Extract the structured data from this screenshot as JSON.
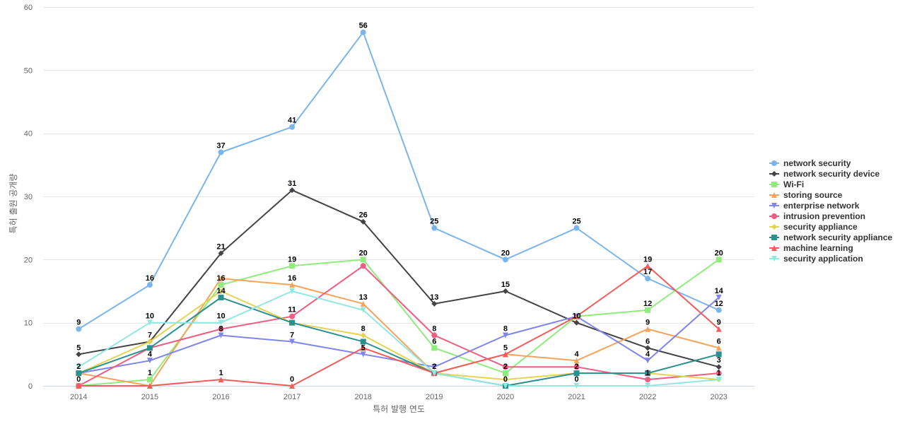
{
  "chart_data": {
    "type": "line",
    "title": "",
    "xlabel": "특허 발행 연도",
    "ylabel": "특허 출원 공개량",
    "categories": [
      "2014",
      "2015",
      "2016",
      "2017",
      "2018",
      "2019",
      "2020",
      "2021",
      "2022",
      "2023"
    ],
    "ylim": [
      0,
      60
    ],
    "yticks": [
      0,
      10,
      20,
      30,
      40,
      50,
      60
    ],
    "grid": true,
    "legend_position": "right",
    "series": [
      {
        "name": "network security",
        "color": "#7cb5ec",
        "marker": "circle",
        "values": [
          9,
          16,
          37,
          41,
          56,
          25,
          20,
          25,
          17,
          12
        ]
      },
      {
        "name": "network security device",
        "color": "#434348",
        "marker": "diamond",
        "values": [
          5,
          7,
          21,
          31,
          26,
          13,
          15,
          10,
          6,
          3
        ]
      },
      {
        "name": "Wi-Fi",
        "color": "#90ed7d",
        "marker": "square",
        "values": [
          0,
          1,
          16,
          19,
          20,
          6,
          2,
          11,
          12,
          20
        ]
      },
      {
        "name": "storing source",
        "color": "#f7a35c",
        "marker": "triangle",
        "values": [
          2,
          0,
          17,
          16,
          13,
          2,
          5,
          4,
          9,
          6
        ]
      },
      {
        "name": "enterprise network",
        "color": "#8085e9",
        "marker": "triangle-down",
        "values": [
          2,
          4,
          8,
          7,
          5,
          3,
          8,
          11,
          4,
          14
        ]
      },
      {
        "name": "intrusion prevention",
        "color": "#f15c80",
        "marker": "circle",
        "values": [
          0,
          6,
          9,
          11,
          19,
          8,
          3,
          3,
          1,
          2
        ]
      },
      {
        "name": "security appliance",
        "color": "#e4d354",
        "marker": "diamond",
        "values": [
          2,
          7,
          15,
          10,
          8,
          2,
          1,
          2,
          2,
          1
        ]
      },
      {
        "name": "network security appliance",
        "color": "#2b908f",
        "marker": "square",
        "values": [
          2,
          6,
          14,
          10,
          7,
          2,
          0,
          2,
          2,
          5
        ]
      },
      {
        "name": "machine learning",
        "color": "#f45b5b",
        "marker": "triangle",
        "values": [
          0,
          0,
          1,
          0,
          6,
          2,
          5,
          11,
          19,
          9
        ]
      },
      {
        "name": "security application",
        "color": "#91e8e1",
        "marker": "triangle-down",
        "values": [
          3,
          10,
          10,
          15,
          12,
          2,
          0,
          0,
          0,
          1
        ]
      }
    ],
    "data_labels": [
      {
        "x": "2014",
        "text": "9"
      },
      {
        "x": "2014",
        "text": "5"
      },
      {
        "x": "2014",
        "text": "2"
      },
      {
        "x": "2014",
        "text": "0"
      },
      {
        "x": "2015",
        "text": "16"
      },
      {
        "x": "2015",
        "text": "10"
      },
      {
        "x": "2015",
        "text": "7"
      },
      {
        "x": "2015",
        "text": "4"
      },
      {
        "x": "2015",
        "text": "1"
      },
      {
        "x": "2016",
        "text": "37"
      },
      {
        "x": "2016",
        "text": "21"
      },
      {
        "x": "2016",
        "text": "16"
      },
      {
        "x": "2016",
        "text": "14"
      },
      {
        "x": "2016",
        "text": "10"
      },
      {
        "x": "2016",
        "text": "8"
      },
      {
        "x": "2016",
        "text": "1"
      },
      {
        "x": "2017",
        "text": "41"
      },
      {
        "x": "2017",
        "text": "31"
      },
      {
        "x": "2017",
        "text": "19"
      },
      {
        "x": "2017",
        "text": "16"
      },
      {
        "x": "2017",
        "text": "11"
      },
      {
        "x": "2017",
        "text": "7"
      },
      {
        "x": "2017",
        "text": "0"
      },
      {
        "x": "2018",
        "text": "56"
      },
      {
        "x": "2018",
        "text": "26"
      },
      {
        "x": "2018",
        "text": "20"
      },
      {
        "x": "2018",
        "text": "13"
      },
      {
        "x": "2018",
        "text": "8"
      },
      {
        "x": "2018",
        "text": "5"
      },
      {
        "x": "2019",
        "text": "25"
      },
      {
        "x": "2019",
        "text": "13"
      },
      {
        "x": "2019",
        "text": "8"
      },
      {
        "x": "2019",
        "text": "6"
      },
      {
        "x": "2019",
        "text": "2"
      },
      {
        "x": "2020",
        "text": "20"
      },
      {
        "x": "2020",
        "text": "15"
      },
      {
        "x": "2020",
        "text": "8"
      },
      {
        "x": "2020",
        "text": "5"
      },
      {
        "x": "2020",
        "text": "2"
      },
      {
        "x": "2020",
        "text": "0"
      },
      {
        "x": "2021",
        "text": "25"
      },
      {
        "x": "2021",
        "text": "10"
      },
      {
        "x": "2021",
        "text": "4"
      },
      {
        "x": "2021",
        "text": "2"
      },
      {
        "x": "2021",
        "text": "0"
      },
      {
        "x": "2022",
        "text": "19"
      },
      {
        "x": "2022",
        "text": "17"
      },
      {
        "x": "2022",
        "text": "12"
      },
      {
        "x": "2022",
        "text": "9"
      },
      {
        "x": "2022",
        "text": "6"
      },
      {
        "x": "2022",
        "text": "4"
      },
      {
        "x": "2022",
        "text": "1"
      },
      {
        "x": "2023",
        "text": "20"
      },
      {
        "x": "2023",
        "text": "14"
      },
      {
        "x": "2023",
        "text": "12"
      },
      {
        "x": "2023",
        "text": "9"
      },
      {
        "x": "2023",
        "text": "6"
      },
      {
        "x": "2023",
        "text": "3"
      },
      {
        "x": "2023",
        "text": "1"
      }
    ]
  }
}
